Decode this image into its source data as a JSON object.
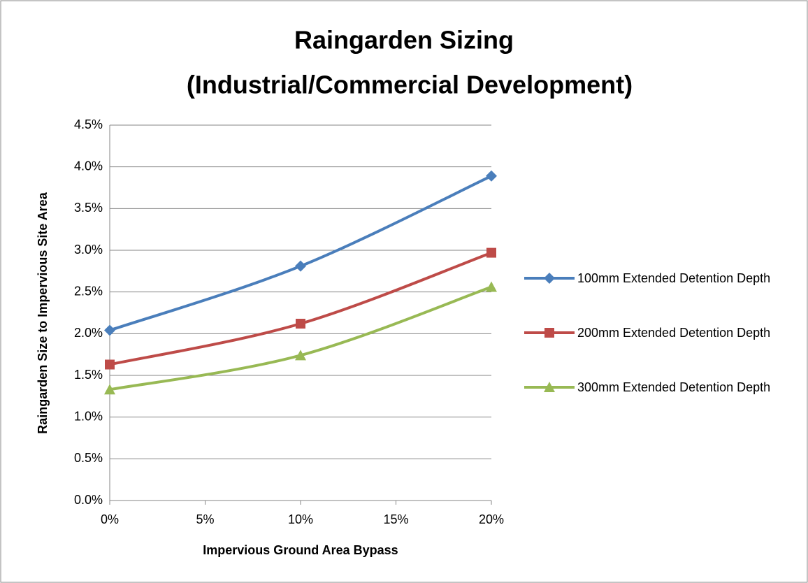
{
  "chart_data": {
    "type": "line",
    "title": [
      "Raingarden  Sizing",
      "(Industrial/Commercial Development)"
    ],
    "x_label": "Impervious Ground Area Bypass",
    "y_label": "Raingarden Size to Impervious Site Area",
    "x": [
      0,
      10,
      20
    ],
    "series": [
      {
        "name": "100mm Extended Detention Depth",
        "color": "#4a7ebb",
        "marker": "diamond",
        "values": [
          2.04,
          2.81,
          3.89
        ]
      },
      {
        "name": "200mm Extended Detention Depth",
        "color": "#be4b48",
        "marker": "square",
        "values": [
          1.63,
          2.12,
          2.97
        ]
      },
      {
        "name": "300mm Extended Detention Depth",
        "color": "#98b954",
        "marker": "triangle",
        "values": [
          1.33,
          1.74,
          2.56
        ]
      }
    ],
    "xlim": [
      0,
      20
    ],
    "xticks": [
      {
        "value": 0,
        "label": "0%"
      },
      {
        "value": 5,
        "label": "5%"
      },
      {
        "value": 10,
        "label": "10%"
      },
      {
        "value": 15,
        "label": "15%"
      },
      {
        "value": 20,
        "label": "20%"
      }
    ],
    "ylim": [
      0,
      4.5
    ],
    "yticks": [
      {
        "value": 0,
        "label": "0.0%"
      },
      {
        "value": 0.5,
        "label": "0.5%"
      },
      {
        "value": 1,
        "label": "1.0%"
      },
      {
        "value": 1.5,
        "label": "1.5%"
      },
      {
        "value": 2,
        "label": "2.0%"
      },
      {
        "value": 2.5,
        "label": "2.5%"
      },
      {
        "value": 3,
        "label": "3.0%"
      },
      {
        "value": 3.5,
        "label": "3.5%"
      },
      {
        "value": 4,
        "label": "4.0%"
      },
      {
        "value": 4.5,
        "label": "4.5%"
      }
    ],
    "grid": true,
    "smooth": true,
    "legend": "right"
  }
}
